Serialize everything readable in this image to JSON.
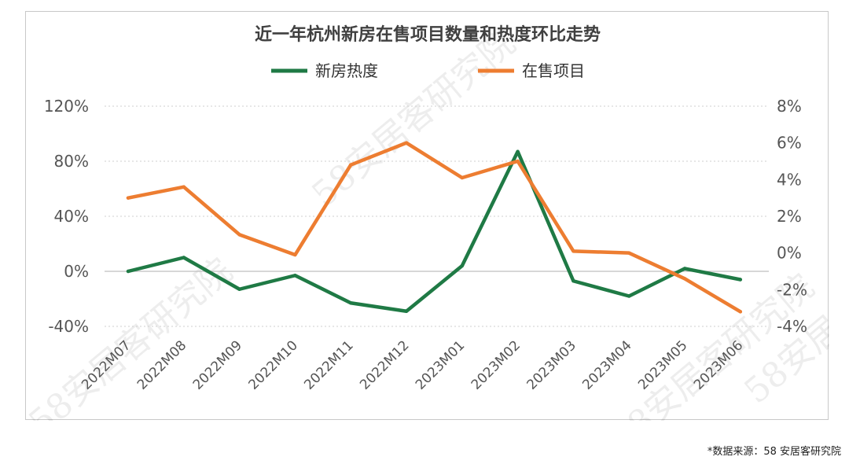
{
  "chart_data": {
    "type": "line",
    "title": "近一年杭州新房在售项目数量和热度环比走势",
    "categories": [
      "2022M07",
      "2022M08",
      "2022M09",
      "2022M10",
      "2022M11",
      "2022M12",
      "2023M01",
      "2023M02",
      "2023M03",
      "2023M04",
      "2023M05",
      "2023M06"
    ],
    "series": [
      {
        "name": "新房热度",
        "axis": "left",
        "color": "#1f7a45",
        "values": [
          0,
          10,
          -13,
          -3,
          -23,
          -29,
          4,
          87,
          -7,
          -18,
          2,
          -6
        ]
      },
      {
        "name": "在售项目",
        "axis": "right",
        "color": "#ed7d31",
        "values": [
          3.0,
          3.6,
          1.0,
          -0.1,
          4.8,
          6.0,
          4.1,
          5.0,
          0.1,
          0.0,
          -1.4,
          -3.2
        ]
      }
    ],
    "y_left": {
      "ticks": [
        -40,
        0,
        40,
        80,
        120
      ],
      "tick_labels": [
        "-40%",
        "0%",
        "40%",
        "80%",
        "120%"
      ],
      "ylim": [
        -40,
        120
      ]
    },
    "y_right": {
      "ticks": [
        -4,
        -2,
        0,
        2,
        4,
        6,
        8
      ],
      "tick_labels": [
        "-4%",
        "-2%",
        "0%",
        "2%",
        "4%",
        "6%",
        "8%"
      ],
      "ylim": [
        -4,
        8
      ]
    },
    "grid": "horizontal-dotted",
    "legend": "top-center",
    "watermark": "58安居客研究院"
  },
  "source_note": "*数据来源：58 安居客研究院"
}
